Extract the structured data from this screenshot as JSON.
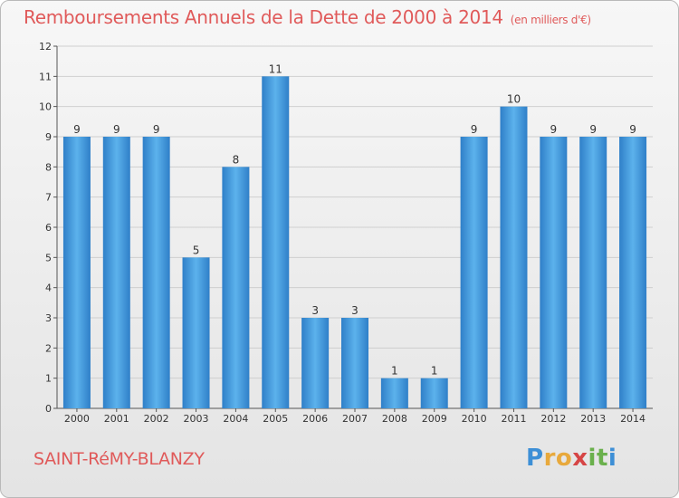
{
  "header": {
    "title": "Remboursements Annuels de la Dette de 2000 à 2014",
    "unit": "(en milliers d'€)"
  },
  "footer": {
    "town": "SAINT-RéMY-BLANZY",
    "logo_letters": [
      "P",
      "r",
      "o",
      "x",
      "i",
      "t",
      "i"
    ],
    "logo_colors": [
      "#3d8fd6",
      "#e8a93c",
      "#e8a93c",
      "#d64545",
      "#6ab04c",
      "#6ab04c",
      "#3d8fd6"
    ]
  },
  "colors": {
    "bar": "#3d8fd6",
    "bar_light": "#5eb0ea",
    "title": "#e05a5a"
  },
  "chart_data": {
    "type": "bar",
    "categories": [
      "2000",
      "2001",
      "2002",
      "2003",
      "2004",
      "2005",
      "2006",
      "2007",
      "2008",
      "2009",
      "2010",
      "2011",
      "2012",
      "2013",
      "2014"
    ],
    "values": [
      9,
      9,
      9,
      5,
      8,
      11,
      3,
      3,
      1,
      1,
      9,
      10,
      9,
      9,
      9
    ],
    "title": "Remboursements Annuels de la Dette de 2000 à 2014",
    "ylim": [
      0,
      12
    ],
    "yticks": [
      0,
      1,
      2,
      3,
      4,
      5,
      6,
      7,
      8,
      9,
      10,
      11,
      12
    ],
    "grid": true
  }
}
